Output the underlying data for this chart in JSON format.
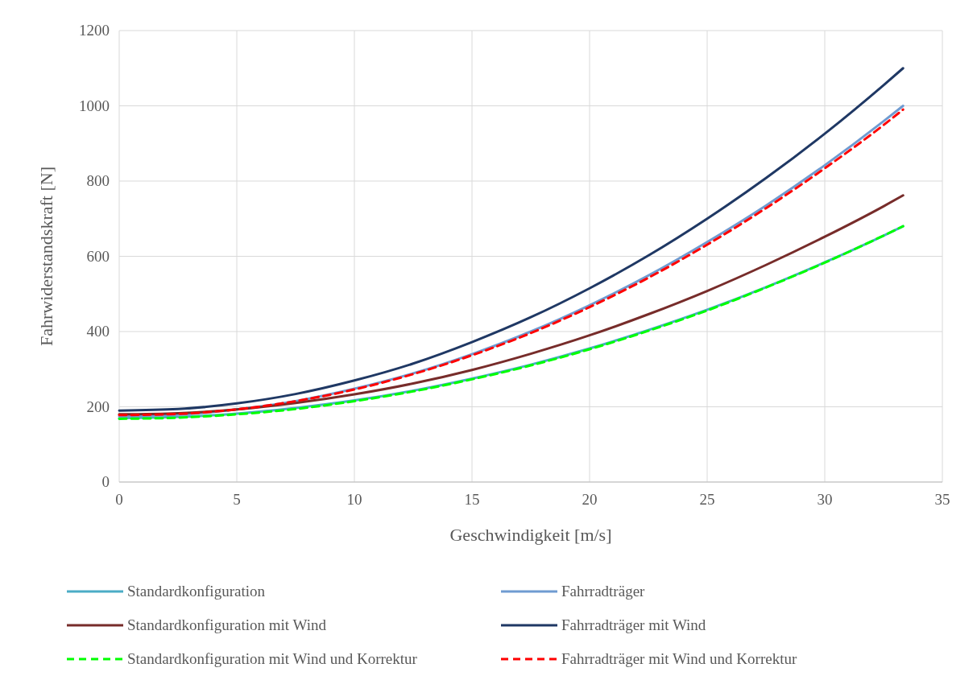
{
  "chart_data": {
    "type": "line",
    "xlabel": "Geschwindigkeit [m/s]",
    "ylabel": "Fahrwiderstandskraft [N]",
    "xlim": [
      0,
      35
    ],
    "xticks": [
      0,
      5,
      10,
      15,
      20,
      25,
      30,
      35
    ],
    "ylim": [
      0,
      1200
    ],
    "yticks": [
      0,
      200,
      400,
      600,
      800,
      1000,
      1200
    ],
    "grid": true,
    "legend": "bottom",
    "marker": "none",
    "x": [
      0,
      2.5,
      5,
      7.5,
      10,
      12.5,
      15,
      17.5,
      20,
      22.5,
      25,
      27.5,
      30,
      32.5,
      33.33
    ],
    "series": [
      {
        "name": "Standardkonfiguration",
        "color": "#4bacc6",
        "line_style": "solid",
        "values": [
          170,
          173,
          182,
          197,
          217,
          243,
          275,
          312,
          355,
          404,
          458,
          518,
          584,
          655,
          680
        ]
      },
      {
        "name": "Fahrradträger",
        "color": "#6f9bd1",
        "line_style": "solid",
        "values": [
          175,
          179,
          193,
          215,
          248,
          289,
          340,
          400,
          470,
          549,
          638,
          735,
          842,
          959,
          1000
        ]
      },
      {
        "name": "Standardkonfiguration mit Wind",
        "color": "#772c2a",
        "line_style": "solid",
        "values": [
          180,
          183,
          193,
          210,
          233,
          262,
          298,
          341,
          390,
          446,
          508,
          577,
          652,
          733,
          762
        ]
      },
      {
        "name": "Fahrradträger mit Wind",
        "color": "#1f3864",
        "line_style": "solid",
        "values": [
          190,
          194,
          209,
          234,
          270,
          315,
          372,
          438,
          515,
          602,
          700,
          808,
          926,
          1055,
          1100
        ]
      },
      {
        "name": "Standardkonfiguration mit Wind und Korrektur",
        "color": "#00ff00",
        "line_style": "dashed",
        "values": [
          168,
          171,
          180,
          194,
          215,
          241,
          273,
          310,
          353,
          402,
          456,
          517,
          583,
          655,
          680
        ]
      },
      {
        "name": "Fahrradträger mit Wind und Korrektur",
        "color": "#ff0000",
        "line_style": "dashed",
        "values": [
          178,
          181,
          193,
          215,
          246,
          287,
          337,
          396,
          465,
          543,
          631,
          728,
          834,
          949,
          990
        ]
      }
    ]
  }
}
